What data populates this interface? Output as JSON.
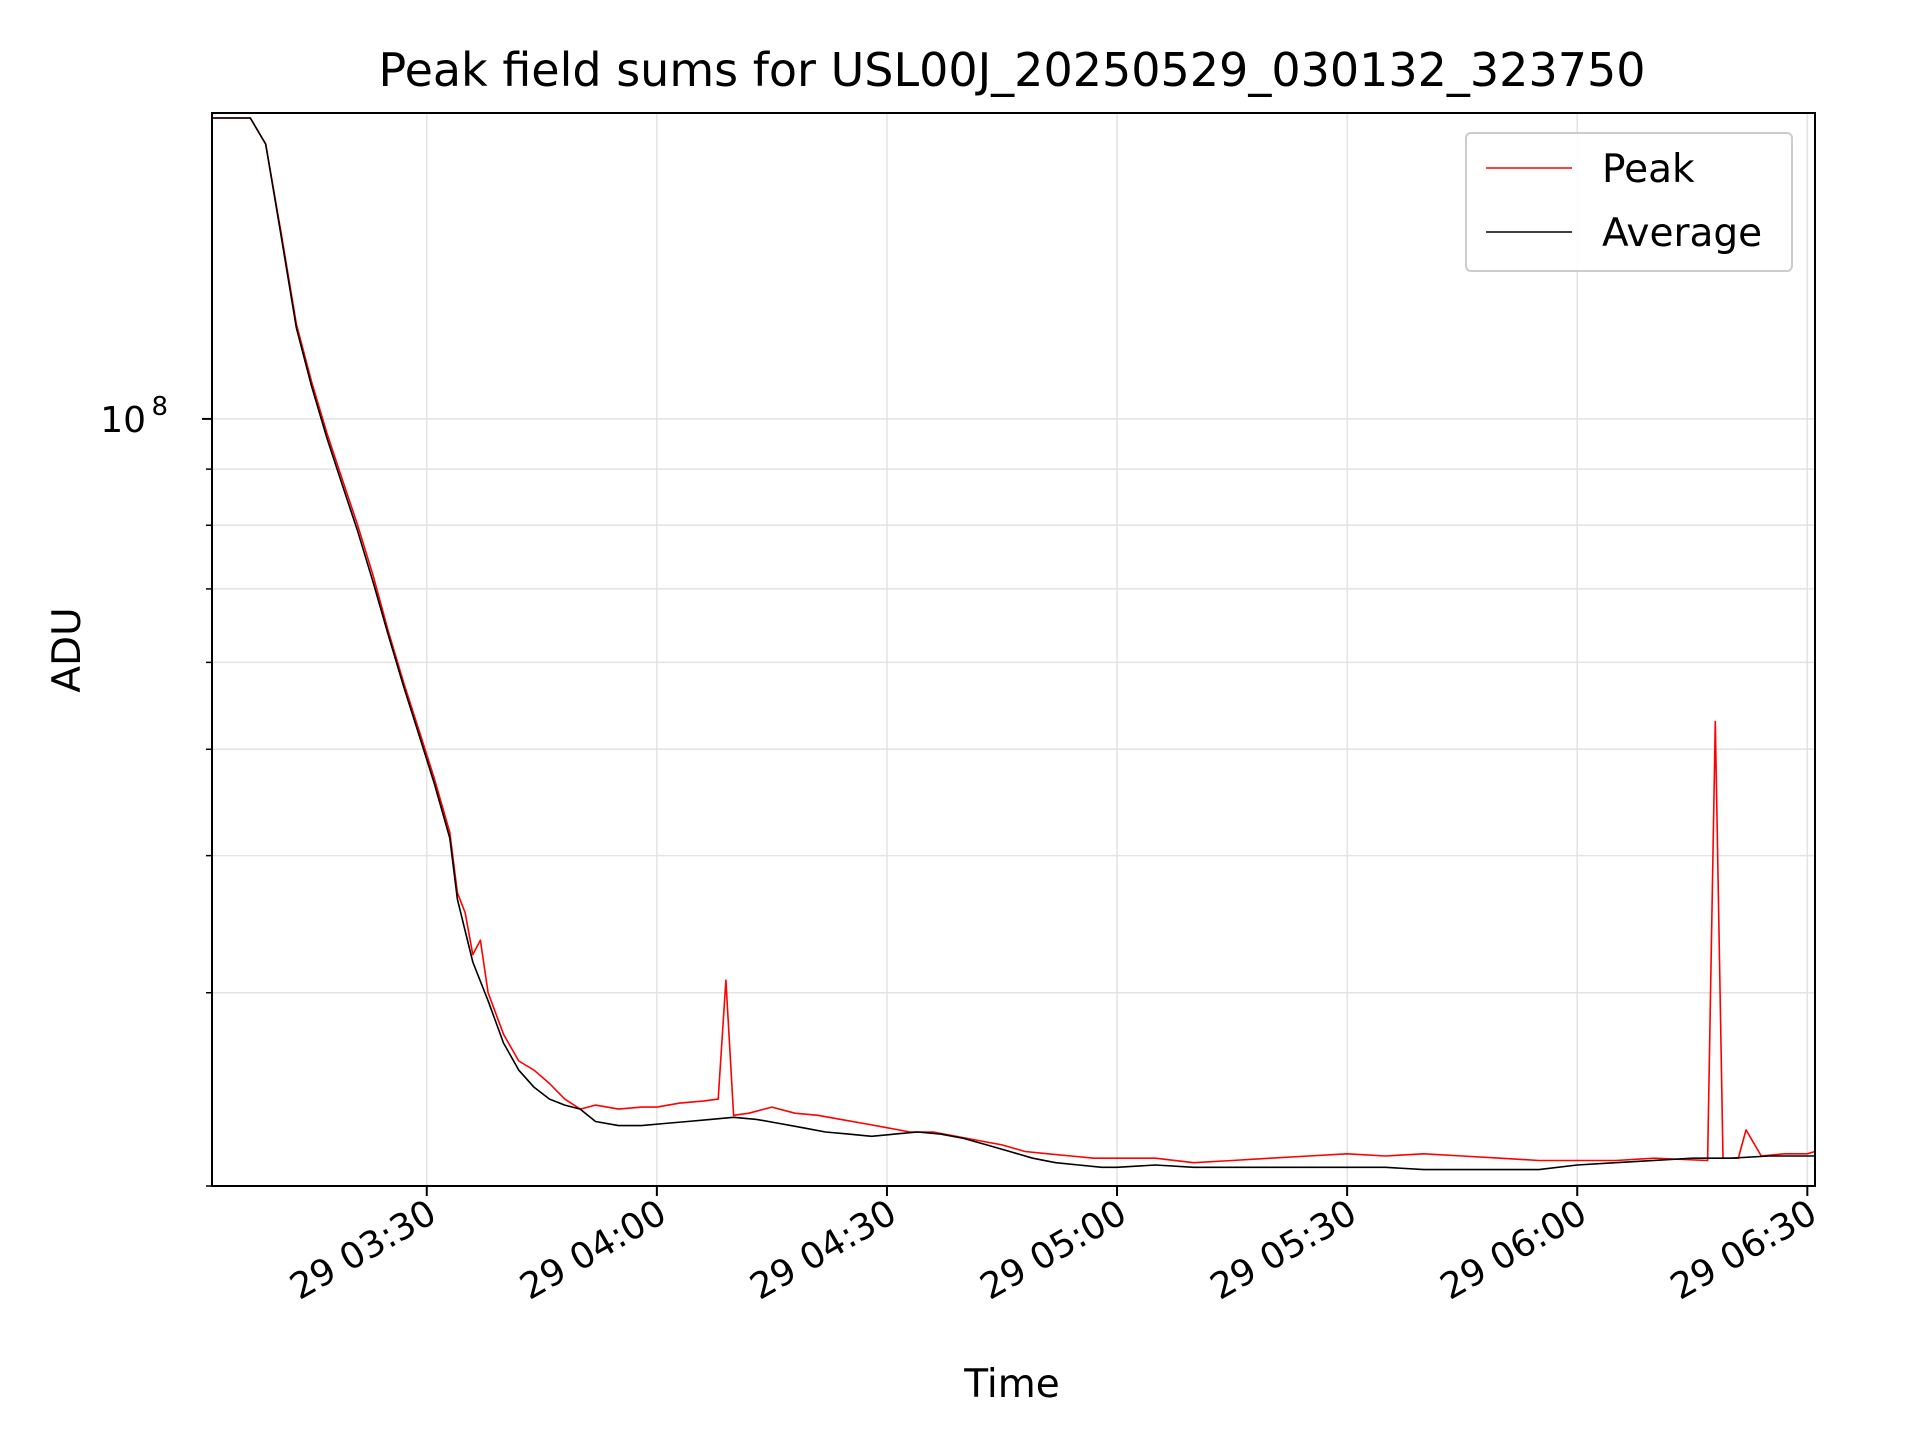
{
  "chart_data": {
    "type": "line",
    "title": "Peak field sums for USL00J_20250529_030132_323750",
    "xlabel": "Time",
    "ylabel": "ADU",
    "y_scale": "log",
    "ylim": [
      20000000,
      190000000
    ],
    "xlim": [
      "2025-05-29 03:02",
      "2025-05-29 06:31"
    ],
    "grid": true,
    "legend_position": "top-right",
    "x_ticks": [
      {
        "x": "2025-05-29 03:30",
        "label": "29 03:30"
      },
      {
        "x": "2025-05-29 04:00",
        "label": "29 04:00"
      },
      {
        "x": "2025-05-29 04:30",
        "label": "29 04:30"
      },
      {
        "x": "2025-05-29 05:00",
        "label": "29 05:00"
      },
      {
        "x": "2025-05-29 05:30",
        "label": "29 05:30"
      },
      {
        "x": "2025-05-29 06:00",
        "label": "29 06:00"
      },
      {
        "x": "2025-05-29 06:30",
        "label": "29 06:30"
      }
    ],
    "y_major_ticks": [
      {
        "y": 100000000,
        "base": "10",
        "exp": "8"
      }
    ],
    "y_minor_ticks": [
      20000000,
      30000000,
      40000000,
      50000000,
      60000000,
      70000000,
      80000000,
      90000000
    ],
    "series": [
      {
        "name": "Peak",
        "color": "#ff0000",
        "points": [
          [
            "2025-05-29 03:02",
            188000000
          ],
          [
            "2025-05-29 03:07",
            188000000
          ],
          [
            "2025-05-29 03:09",
            178000000
          ],
          [
            "2025-05-29 03:11",
            148000000
          ],
          [
            "2025-05-29 03:13",
            122000000
          ],
          [
            "2025-05-29 03:15",
            108000000
          ],
          [
            "2025-05-29 03:17",
            97000000
          ],
          [
            "2025-05-29 03:19",
            88000000
          ],
          [
            "2025-05-29 03:21",
            80000000
          ],
          [
            "2025-05-29 03:23",
            72000000
          ],
          [
            "2025-05-29 03:25",
            64000000
          ],
          [
            "2025-05-29 03:27",
            57500000
          ],
          [
            "2025-05-29 03:29",
            52000000
          ],
          [
            "2025-05-29 03:31",
            47000000
          ],
          [
            "2025-05-29 03:33",
            42000000
          ],
          [
            "2025-05-29 03:34",
            37000000
          ],
          [
            "2025-05-29 03:35",
            35500000
          ],
          [
            "2025-05-29 03:36",
            32500000
          ],
          [
            "2025-05-29 03:37",
            33500000
          ],
          [
            "2025-05-29 03:38",
            30000000
          ],
          [
            "2025-05-29 03:40",
            27500000
          ],
          [
            "2025-05-29 03:42",
            26000000
          ],
          [
            "2025-05-29 03:44",
            25500000
          ],
          [
            "2025-05-29 03:46",
            24800000
          ],
          [
            "2025-05-29 03:48",
            24000000
          ],
          [
            "2025-05-29 03:50",
            23500000
          ],
          [
            "2025-05-29 03:52",
            23700000
          ],
          [
            "2025-05-29 03:55",
            23500000
          ],
          [
            "2025-05-29 03:58",
            23600000
          ],
          [
            "2025-05-29 04:00",
            23600000
          ],
          [
            "2025-05-29 04:03",
            23800000
          ],
          [
            "2025-05-29 04:06",
            23900000
          ],
          [
            "2025-05-29 04:08",
            24000000
          ],
          [
            "2025-05-29 04:09",
            30800000
          ],
          [
            "2025-05-29 04:10",
            23200000
          ],
          [
            "2025-05-29 04:12",
            23300000
          ],
          [
            "2025-05-29 04:15",
            23600000
          ],
          [
            "2025-05-29 04:18",
            23300000
          ],
          [
            "2025-05-29 04:21",
            23200000
          ],
          [
            "2025-05-29 04:24",
            23000000
          ],
          [
            "2025-05-29 04:27",
            22800000
          ],
          [
            "2025-05-29 04:30",
            22600000
          ],
          [
            "2025-05-29 04:33",
            22400000
          ],
          [
            "2025-05-29 04:36",
            22400000
          ],
          [
            "2025-05-29 04:39",
            22200000
          ],
          [
            "2025-05-29 04:42",
            22000000
          ],
          [
            "2025-05-29 04:45",
            21800000
          ],
          [
            "2025-05-29 04:48",
            21500000
          ],
          [
            "2025-05-29 04:51",
            21400000
          ],
          [
            "2025-05-29 04:54",
            21300000
          ],
          [
            "2025-05-29 04:57",
            21200000
          ],
          [
            "2025-05-29 05:00",
            21200000
          ],
          [
            "2025-05-29 05:05",
            21200000
          ],
          [
            "2025-05-29 05:10",
            21000000
          ],
          [
            "2025-05-29 05:15",
            21100000
          ],
          [
            "2025-05-29 05:20",
            21200000
          ],
          [
            "2025-05-29 05:25",
            21300000
          ],
          [
            "2025-05-29 05:30",
            21400000
          ],
          [
            "2025-05-29 05:35",
            21300000
          ],
          [
            "2025-05-29 05:40",
            21400000
          ],
          [
            "2025-05-29 05:45",
            21300000
          ],
          [
            "2025-05-29 05:50",
            21200000
          ],
          [
            "2025-05-29 05:55",
            21100000
          ],
          [
            "2025-05-29 06:00",
            21100000
          ],
          [
            "2025-05-29 06:05",
            21100000
          ],
          [
            "2025-05-29 06:10",
            21200000
          ],
          [
            "2025-05-29 06:17",
            21100000
          ],
          [
            "2025-05-29 06:18",
            53000000
          ],
          [
            "2025-05-29 06:19",
            21200000
          ],
          [
            "2025-05-29 06:21",
            21200000
          ],
          [
            "2025-05-29 06:22",
            22500000
          ],
          [
            "2025-05-29 06:24",
            21300000
          ],
          [
            "2025-05-29 06:27",
            21400000
          ],
          [
            "2025-05-29 06:30",
            21400000
          ],
          [
            "2025-05-29 06:31",
            21500000
          ]
        ]
      },
      {
        "name": "Average",
        "color": "#000000",
        "points": [
          [
            "2025-05-29 03:02",
            188000000
          ],
          [
            "2025-05-29 03:07",
            188000000
          ],
          [
            "2025-05-29 03:09",
            178000000
          ],
          [
            "2025-05-29 03:11",
            147000000
          ],
          [
            "2025-05-29 03:13",
            121000000
          ],
          [
            "2025-05-29 03:15",
            107000000
          ],
          [
            "2025-05-29 03:17",
            96000000
          ],
          [
            "2025-05-29 03:19",
            87000000
          ],
          [
            "2025-05-29 03:21",
            79000000
          ],
          [
            "2025-05-29 03:23",
            71000000
          ],
          [
            "2025-05-29 03:25",
            63500000
          ],
          [
            "2025-05-29 03:27",
            57000000
          ],
          [
            "2025-05-29 03:29",
            51500000
          ],
          [
            "2025-05-29 03:31",
            46500000
          ],
          [
            "2025-05-29 03:33",
            41500000
          ],
          [
            "2025-05-29 03:34",
            36500000
          ],
          [
            "2025-05-29 03:36",
            32000000
          ],
          [
            "2025-05-29 03:38",
            29500000
          ],
          [
            "2025-05-29 03:40",
            27000000
          ],
          [
            "2025-05-29 03:42",
            25500000
          ],
          [
            "2025-05-29 03:44",
            24600000
          ],
          [
            "2025-05-29 03:46",
            24000000
          ],
          [
            "2025-05-29 03:48",
            23700000
          ],
          [
            "2025-05-29 03:50",
            23500000
          ],
          [
            "2025-05-29 03:52",
            22900000
          ],
          [
            "2025-05-29 03:55",
            22700000
          ],
          [
            "2025-05-29 03:58",
            22700000
          ],
          [
            "2025-05-29 04:01",
            22800000
          ],
          [
            "2025-05-29 04:04",
            22900000
          ],
          [
            "2025-05-29 04:07",
            23000000
          ],
          [
            "2025-05-29 04:10",
            23100000
          ],
          [
            "2025-05-29 04:13",
            23000000
          ],
          [
            "2025-05-29 04:16",
            22800000
          ],
          [
            "2025-05-29 04:19",
            22600000
          ],
          [
            "2025-05-29 04:22",
            22400000
          ],
          [
            "2025-05-29 04:25",
            22300000
          ],
          [
            "2025-05-29 04:28",
            22200000
          ],
          [
            "2025-05-29 04:31",
            22300000
          ],
          [
            "2025-05-29 04:34",
            22400000
          ],
          [
            "2025-05-29 04:37",
            22300000
          ],
          [
            "2025-05-29 04:40",
            22100000
          ],
          [
            "2025-05-29 04:43",
            21800000
          ],
          [
            "2025-05-29 04:46",
            21500000
          ],
          [
            "2025-05-29 04:49",
            21200000
          ],
          [
            "2025-05-29 04:52",
            21000000
          ],
          [
            "2025-05-29 04:55",
            20900000
          ],
          [
            "2025-05-29 04:58",
            20800000
          ],
          [
            "2025-05-29 05:00",
            20800000
          ],
          [
            "2025-05-29 05:05",
            20900000
          ],
          [
            "2025-05-29 05:10",
            20800000
          ],
          [
            "2025-05-29 05:15",
            20800000
          ],
          [
            "2025-05-29 05:20",
            20800000
          ],
          [
            "2025-05-29 05:25",
            20800000
          ],
          [
            "2025-05-29 05:30",
            20800000
          ],
          [
            "2025-05-29 05:35",
            20800000
          ],
          [
            "2025-05-29 05:40",
            20700000
          ],
          [
            "2025-05-29 05:45",
            20700000
          ],
          [
            "2025-05-29 05:50",
            20700000
          ],
          [
            "2025-05-29 05:55",
            20700000
          ],
          [
            "2025-05-29 06:00",
            20900000
          ],
          [
            "2025-05-29 06:05",
            21000000
          ],
          [
            "2025-05-29 06:10",
            21100000
          ],
          [
            "2025-05-29 06:15",
            21200000
          ],
          [
            "2025-05-29 06:20",
            21200000
          ],
          [
            "2025-05-29 06:25",
            21300000
          ],
          [
            "2025-05-29 06:31",
            21300000
          ]
        ]
      }
    ]
  }
}
